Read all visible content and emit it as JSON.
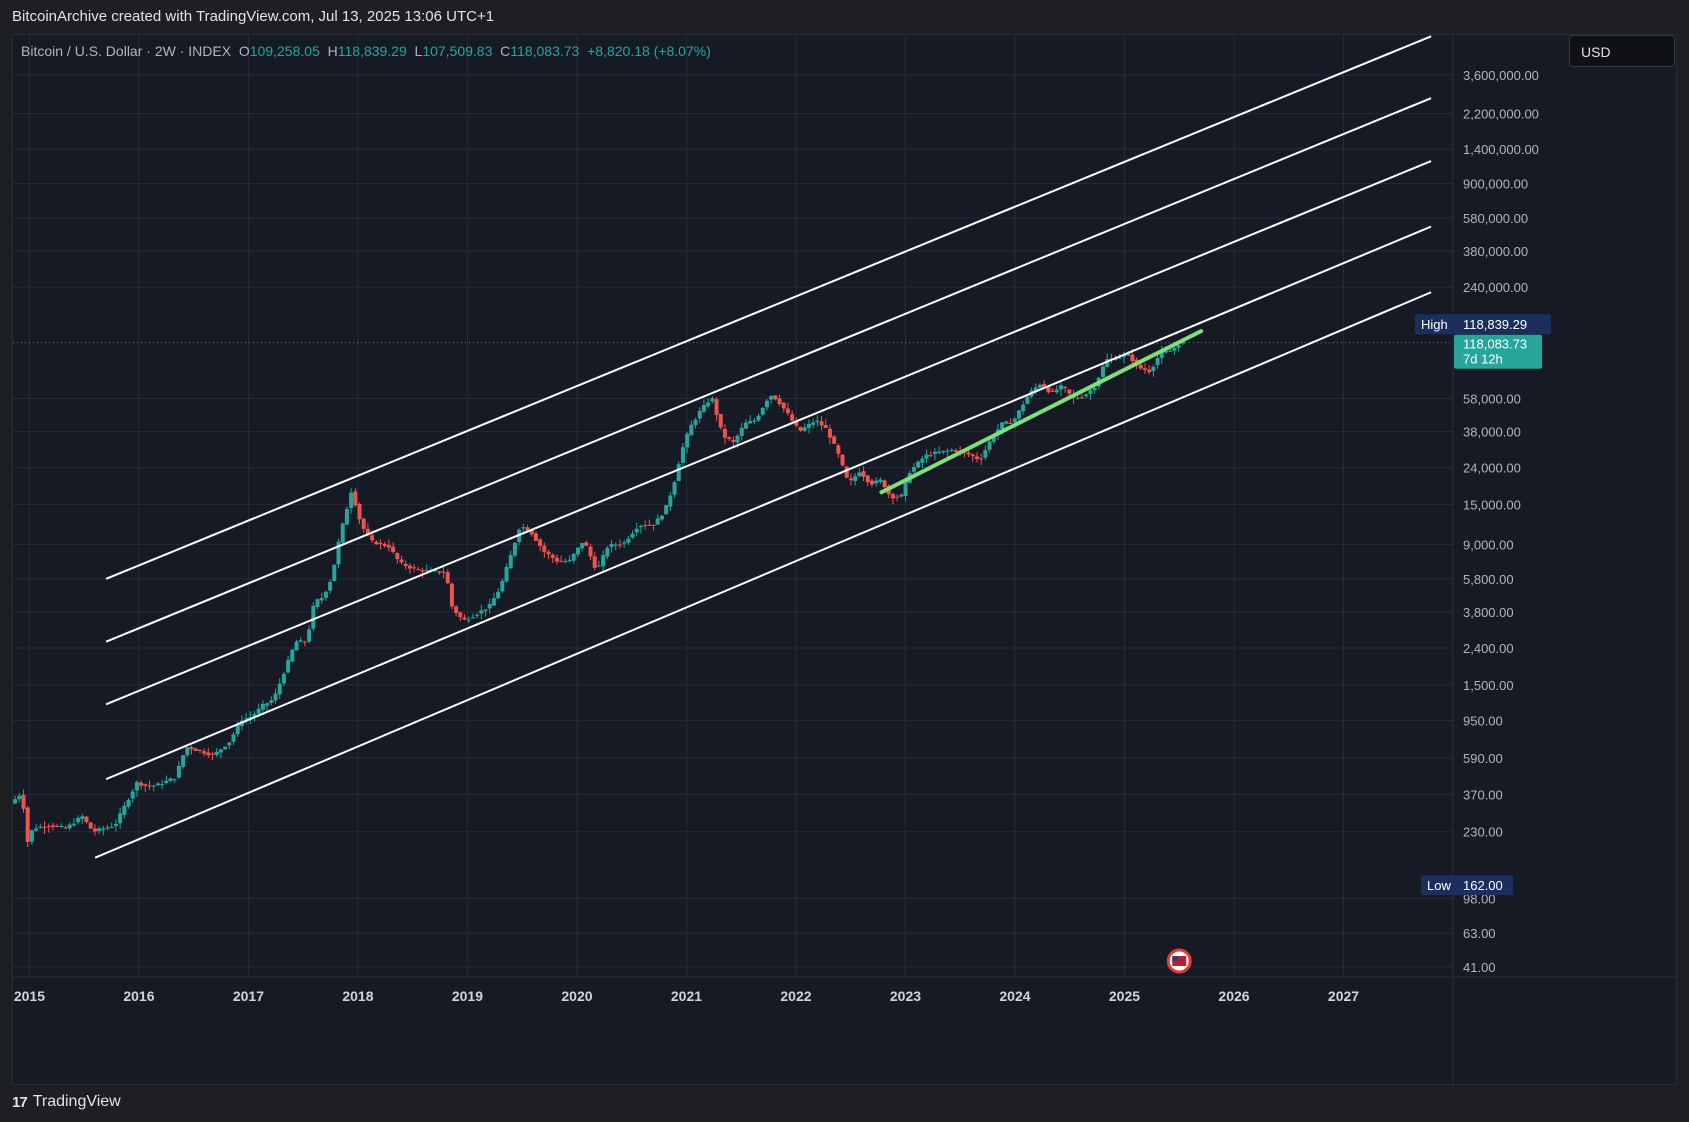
{
  "header": {
    "caption": "BitcoinArchive created with TradingView.com, Jul 13, 2025 13:06 UTC+1"
  },
  "legend": {
    "symbol": "Bitcoin / U.S. Dollar · 2W · INDEX",
    "open_label": "O",
    "open": "109,258.05",
    "high_label": "H",
    "high": "118,839.29",
    "low_label": "L",
    "low": "107,509.83",
    "close_label": "C",
    "close": "118,083.73",
    "change": "+8,820.18 (+8.07%)"
  },
  "currency_button": "USD",
  "markers": {
    "high_label": "High",
    "high_value": "118,839.29",
    "last_value": "118,083.73",
    "countdown": "7d 12h",
    "low_label": "Low",
    "low_value": "162.00"
  },
  "footer": {
    "brand": "TradingView",
    "logo_text": "17"
  },
  "colors": {
    "up": "#26a69a",
    "down": "#ef5350",
    "channel": "#ffffff",
    "trend": "#7ee07a",
    "background": "#161a25",
    "grid": "#262b36",
    "label_high": "#1c2e5c",
    "label_last": "#26a69a"
  },
  "chart_data": {
    "type": "candlestick",
    "title": "Bitcoin / U.S. Dollar · 2W · INDEX",
    "yscale": "log",
    "ylim": [
      36,
      6000000
    ],
    "xlim": [
      2014.85,
      2028.0
    ],
    "y_ticks": [
      {
        "v": 3600000,
        "l": "3,600,000.00"
      },
      {
        "v": 2200000,
        "l": "2,200,000.00"
      },
      {
        "v": 1400000,
        "l": "1,400,000.00"
      },
      {
        "v": 900000,
        "l": "900,000.00"
      },
      {
        "v": 580000,
        "l": "580,000.00"
      },
      {
        "v": 380000,
        "l": "380,000.00"
      },
      {
        "v": 240000,
        "l": "240,000.00"
      },
      {
        "v": 58000,
        "l": "58,000.00"
      },
      {
        "v": 38000,
        "l": "38,000.00"
      },
      {
        "v": 24000,
        "l": "24,000.00"
      },
      {
        "v": 15000,
        "l": "15,000.00"
      },
      {
        "v": 9000,
        "l": "9,000.00"
      },
      {
        "v": 5800,
        "l": "5,800.00"
      },
      {
        "v": 3800,
        "l": "3,800.00"
      },
      {
        "v": 2400,
        "l": "2,400.00"
      },
      {
        "v": 1500,
        "l": "1,500.00"
      },
      {
        "v": 950,
        "l": "950.00"
      },
      {
        "v": 590,
        "l": "590.00"
      },
      {
        "v": 370,
        "l": "370.00"
      },
      {
        "v": 230,
        "l": "230.00"
      },
      {
        "v": 98,
        "l": "98.00"
      },
      {
        "v": 63,
        "l": "63.00"
      },
      {
        "v": 41,
        "l": "41.00"
      }
    ],
    "x_ticks": [
      "2015",
      "2016",
      "2017",
      "2018",
      "2019",
      "2020",
      "2021",
      "2022",
      "2023",
      "2024",
      "2025",
      "2026",
      "2027"
    ],
    "price_path": [
      [
        2014.85,
        330
      ],
      [
        2014.95,
        380
      ],
      [
        2015.0,
        200
      ],
      [
        2015.05,
        240
      ],
      [
        2015.2,
        250
      ],
      [
        2015.35,
        240
      ],
      [
        2015.5,
        280
      ],
      [
        2015.6,
        230
      ],
      [
        2015.7,
        240
      ],
      [
        2015.8,
        250
      ],
      [
        2015.9,
        330
      ],
      [
        2016.0,
        430
      ],
      [
        2016.1,
        410
      ],
      [
        2016.2,
        420
      ],
      [
        2016.35,
        460
      ],
      [
        2016.45,
        680
      ],
      [
        2016.55,
        650
      ],
      [
        2016.7,
        610
      ],
      [
        2016.85,
        730
      ],
      [
        2016.95,
        960
      ],
      [
        2017.05,
        1000
      ],
      [
        2017.15,
        1150
      ],
      [
        2017.25,
        1250
      ],
      [
        2017.35,
        1800
      ],
      [
        2017.45,
        2600
      ],
      [
        2017.55,
        2600
      ],
      [
        2017.62,
        4300
      ],
      [
        2017.7,
        4600
      ],
      [
        2017.78,
        5900
      ],
      [
        2017.85,
        9800
      ],
      [
        2017.96,
        18000
      ],
      [
        2018.05,
        11500
      ],
      [
        2018.15,
        9300
      ],
      [
        2018.3,
        8800
      ],
      [
        2018.4,
        7100
      ],
      [
        2018.55,
        6500
      ],
      [
        2018.7,
        6400
      ],
      [
        2018.82,
        6300
      ],
      [
        2018.88,
        4000
      ],
      [
        2018.98,
        3400
      ],
      [
        2019.1,
        3700
      ],
      [
        2019.22,
        4100
      ],
      [
        2019.32,
        5200
      ],
      [
        2019.42,
        8000
      ],
      [
        2019.5,
        11500
      ],
      [
        2019.6,
        10500
      ],
      [
        2019.72,
        8200
      ],
      [
        2019.85,
        7200
      ],
      [
        2019.95,
        7300
      ],
      [
        2020.08,
        9500
      ],
      [
        2020.2,
        6400
      ],
      [
        2020.3,
        8800
      ],
      [
        2020.45,
        9200
      ],
      [
        2020.58,
        11500
      ],
      [
        2020.72,
        11600
      ],
      [
        2020.82,
        13800
      ],
      [
        2020.9,
        19000
      ],
      [
        2020.97,
        29000
      ],
      [
        2021.05,
        40000
      ],
      [
        2021.15,
        50000
      ],
      [
        2021.25,
        59000
      ],
      [
        2021.35,
        36000
      ],
      [
        2021.45,
        33000
      ],
      [
        2021.55,
        42000
      ],
      [
        2021.65,
        44000
      ],
      [
        2021.78,
        61000
      ],
      [
        2021.85,
        57000
      ],
      [
        2021.95,
        47000
      ],
      [
        2022.05,
        38000
      ],
      [
        2022.2,
        44000
      ],
      [
        2022.3,
        39000
      ],
      [
        2022.4,
        29000
      ],
      [
        2022.5,
        19500
      ],
      [
        2022.6,
        23000
      ],
      [
        2022.7,
        19500
      ],
      [
        2022.8,
        20500
      ],
      [
        2022.88,
        16500
      ],
      [
        2022.98,
        16600
      ],
      [
        2023.05,
        22500
      ],
      [
        2023.2,
        28000
      ],
      [
        2023.3,
        29000
      ],
      [
        2023.45,
        30000
      ],
      [
        2023.55,
        29200
      ],
      [
        2023.7,
        26500
      ],
      [
        2023.8,
        34500
      ],
      [
        2023.9,
        42000
      ],
      [
        2024.0,
        43000
      ],
      [
        2024.15,
        62000
      ],
      [
        2024.25,
        70000
      ],
      [
        2024.35,
        62000
      ],
      [
        2024.45,
        68000
      ],
      [
        2024.55,
        58000
      ],
      [
        2024.65,
        60000
      ],
      [
        2024.75,
        68000
      ],
      [
        2024.85,
        95000
      ],
      [
        2024.95,
        97000
      ],
      [
        2025.05,
        102000
      ],
      [
        2025.15,
        86000
      ],
      [
        2025.25,
        82000
      ],
      [
        2025.35,
        104000
      ],
      [
        2025.45,
        107000
      ],
      [
        2025.52,
        118083
      ]
    ],
    "channels": [
      {
        "x": [
          2015.7,
          2027.8
        ],
        "y": [
          5800,
          5900000
        ]
      },
      {
        "x": [
          2015.7,
          2027.8
        ],
        "y": [
          2600,
          2680000
        ]
      },
      {
        "x": [
          2015.7,
          2027.8
        ],
        "y": [
          1170,
          1200000
        ]
      },
      {
        "x": [
          2015.7,
          2027.8
        ],
        "y": [
          450,
          520000
        ]
      },
      {
        "x": [
          2015.6,
          2027.8
        ],
        "y": [
          165,
          225000
        ]
      }
    ],
    "trend": {
      "x": [
        2022.78,
        2025.7
      ],
      "y": [
        17500,
        137000
      ]
    },
    "current_price": 118083.73,
    "high": 118839.29,
    "low": 162.0
  }
}
